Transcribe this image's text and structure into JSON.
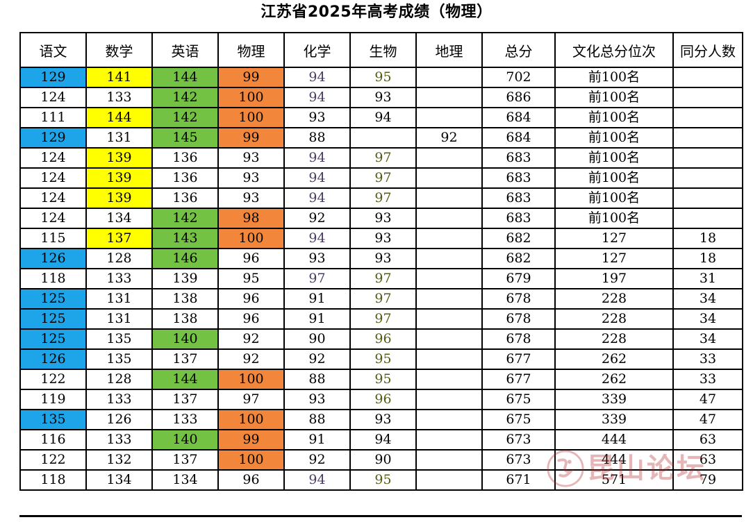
{
  "title": "江苏省2025年高考成绩（物理）",
  "headers": [
    "语文",
    "数学",
    "英语",
    "物理",
    "化学",
    "生物",
    "地理",
    "总分",
    "文化总分位次",
    "同分人数"
  ],
  "rows": [
    {
      "cells": [
        "129",
        "141",
        "144",
        "99",
        "94",
        "95",
        "",
        "702",
        "前100名",
        ""
      ],
      "hl": [
        "blue",
        "yellow",
        "green",
        "orange",
        "",
        "",
        "",
        "",
        "",
        ""
      ],
      "tc": [
        "",
        "",
        "",
        "",
        "purp",
        "olive",
        "",
        "",
        "",
        ""
      ]
    },
    {
      "cells": [
        "124",
        "133",
        "142",
        "100",
        "94",
        "93",
        "",
        "686",
        "前100名",
        ""
      ],
      "hl": [
        "",
        "",
        "green",
        "orange",
        "",
        "",
        "",
        "",
        "",
        ""
      ],
      "tc": [
        "",
        "",
        "",
        "",
        "purp",
        "",
        "",
        "",
        "",
        ""
      ]
    },
    {
      "cells": [
        "111",
        "144",
        "142",
        "100",
        "93",
        "94",
        "",
        "684",
        "前100名",
        ""
      ],
      "hl": [
        "",
        "yellow",
        "green",
        "orange",
        "",
        "",
        "",
        "",
        "",
        ""
      ],
      "tc": [
        "",
        "",
        "",
        "",
        "",
        "",
        "",
        "",
        "",
        ""
      ]
    },
    {
      "cells": [
        "129",
        "131",
        "145",
        "99",
        "88",
        "",
        "92",
        "684",
        "前100名",
        ""
      ],
      "hl": [
        "blue",
        "",
        "green",
        "orange",
        "",
        "",
        "",
        "",
        "",
        ""
      ],
      "tc": [
        "",
        "",
        "",
        "",
        "",
        "",
        "",
        "",
        "",
        ""
      ]
    },
    {
      "cells": [
        "124",
        "139",
        "136",
        "93",
        "94",
        "97",
        "",
        "683",
        "前100名",
        ""
      ],
      "hl": [
        "",
        "yellow",
        "",
        "",
        "",
        "",
        "",
        "",
        "",
        ""
      ],
      "tc": [
        "",
        "",
        "",
        "",
        "purp",
        "olive",
        "",
        "",
        "",
        ""
      ]
    },
    {
      "cells": [
        "124",
        "139",
        "136",
        "93",
        "94",
        "97",
        "",
        "683",
        "前100名",
        ""
      ],
      "hl": [
        "",
        "yellow",
        "",
        "",
        "",
        "",
        "",
        "",
        "",
        ""
      ],
      "tc": [
        "",
        "",
        "",
        "",
        "purp",
        "olive",
        "",
        "",
        "",
        ""
      ]
    },
    {
      "cells": [
        "124",
        "139",
        "136",
        "93",
        "94",
        "97",
        "",
        "683",
        "前100名",
        ""
      ],
      "hl": [
        "",
        "yellow",
        "",
        "",
        "",
        "",
        "",
        "",
        "",
        ""
      ],
      "tc": [
        "",
        "",
        "",
        "",
        "purp",
        "olive",
        "",
        "",
        "",
        ""
      ]
    },
    {
      "cells": [
        "124",
        "134",
        "142",
        "98",
        "92",
        "93",
        "",
        "683",
        "前100名",
        ""
      ],
      "hl": [
        "",
        "",
        "green",
        "orange",
        "",
        "",
        "",
        "",
        "",
        ""
      ],
      "tc": [
        "",
        "",
        "",
        "",
        "",
        "",
        "",
        "",
        "",
        ""
      ]
    },
    {
      "cells": [
        "115",
        "137",
        "143",
        "100",
        "94",
        "93",
        "",
        "682",
        "127",
        "18"
      ],
      "hl": [
        "",
        "yellow",
        "green",
        "orange",
        "",
        "",
        "",
        "",
        "",
        ""
      ],
      "tc": [
        "",
        "",
        "",
        "",
        "purp",
        "",
        "",
        "",
        "",
        ""
      ]
    },
    {
      "cells": [
        "126",
        "128",
        "146",
        "96",
        "93",
        "93",
        "",
        "682",
        "127",
        "18"
      ],
      "hl": [
        "blue",
        "",
        "green",
        "",
        "",
        "",
        "",
        "",
        "",
        ""
      ],
      "tc": [
        "",
        "",
        "",
        "",
        "",
        "",
        "",
        "",
        "",
        ""
      ]
    },
    {
      "cells": [
        "118",
        "133",
        "139",
        "95",
        "97",
        "97",
        "",
        "679",
        "197",
        "31"
      ],
      "hl": [
        "",
        "",
        "",
        "",
        "",
        "",
        "",
        "",
        "",
        ""
      ],
      "tc": [
        "",
        "",
        "",
        "",
        "purp",
        "olive",
        "",
        "",
        "",
        ""
      ]
    },
    {
      "cells": [
        "125",
        "131",
        "138",
        "96",
        "91",
        "97",
        "",
        "678",
        "228",
        "34"
      ],
      "hl": [
        "blue",
        "",
        "",
        "",
        "",
        "",
        "",
        "",
        "",
        ""
      ],
      "tc": [
        "",
        "",
        "",
        "",
        "",
        "olive",
        "",
        "",
        "",
        ""
      ]
    },
    {
      "cells": [
        "125",
        "131",
        "138",
        "96",
        "91",
        "97",
        "",
        "678",
        "228",
        "34"
      ],
      "hl": [
        "blue",
        "",
        "",
        "",
        "",
        "",
        "",
        "",
        "",
        ""
      ],
      "tc": [
        "",
        "",
        "",
        "",
        "",
        "olive",
        "",
        "",
        "",
        ""
      ]
    },
    {
      "cells": [
        "125",
        "135",
        "140",
        "92",
        "90",
        "96",
        "",
        "678",
        "228",
        "34"
      ],
      "hl": [
        "blue",
        "",
        "green",
        "",
        "",
        "",
        "",
        "",
        "",
        ""
      ],
      "tc": [
        "",
        "",
        "",
        "",
        "",
        "olive",
        "",
        "",
        "",
        ""
      ]
    },
    {
      "cells": [
        "126",
        "135",
        "137",
        "92",
        "92",
        "95",
        "",
        "677",
        "262",
        "33"
      ],
      "hl": [
        "blue",
        "",
        "",
        "",
        "",
        "",
        "",
        "",
        "",
        ""
      ],
      "tc": [
        "",
        "",
        "",
        "",
        "",
        "olive",
        "",
        "",
        "",
        ""
      ]
    },
    {
      "cells": [
        "122",
        "128",
        "144",
        "100",
        "88",
        "95",
        "",
        "677",
        "262",
        "33"
      ],
      "hl": [
        "",
        "",
        "green",
        "orange",
        "",
        "",
        "",
        "",
        "",
        ""
      ],
      "tc": [
        "",
        "",
        "",
        "",
        "",
        "olive",
        "",
        "",
        "",
        ""
      ]
    },
    {
      "cells": [
        "119",
        "133",
        "137",
        "97",
        "93",
        "96",
        "",
        "675",
        "339",
        "47"
      ],
      "hl": [
        "",
        "",
        "",
        "",
        "",
        "",
        "",
        "",
        "",
        ""
      ],
      "tc": [
        "",
        "",
        "",
        "",
        "",
        "olive",
        "",
        "",
        "",
        ""
      ]
    },
    {
      "cells": [
        "135",
        "126",
        "133",
        "100",
        "88",
        "93",
        "",
        "675",
        "339",
        "47"
      ],
      "hl": [
        "blue",
        "",
        "",
        "orange",
        "",
        "",
        "",
        "",
        "",
        ""
      ],
      "tc": [
        "",
        "",
        "",
        "",
        "",
        "",
        "",
        "",
        "",
        ""
      ]
    },
    {
      "cells": [
        "116",
        "133",
        "140",
        "99",
        "91",
        "94",
        "",
        "673",
        "444",
        "63"
      ],
      "hl": [
        "",
        "",
        "green",
        "orange",
        "",
        "",
        "",
        "",
        "",
        ""
      ],
      "tc": [
        "",
        "",
        "",
        "",
        "",
        "",
        "",
        "",
        "",
        ""
      ]
    },
    {
      "cells": [
        "122",
        "132",
        "137",
        "100",
        "92",
        "90",
        "",
        "673",
        "444",
        "63"
      ],
      "hl": [
        "",
        "",
        "",
        "orange",
        "",
        "",
        "",
        "",
        "",
        ""
      ],
      "tc": [
        "",
        "",
        "",
        "",
        "",
        "",
        "",
        "",
        "",
        ""
      ]
    },
    {
      "cells": [
        "118",
        "134",
        "134",
        "96",
        "94",
        "95",
        "",
        "671",
        "571",
        "79"
      ],
      "hl": [
        "",
        "",
        "",
        "",
        "",
        "",
        "",
        "",
        "",
        ""
      ],
      "tc": [
        "",
        "",
        "",
        "",
        "purp",
        "olive",
        "",
        "",
        "",
        ""
      ]
    }
  ],
  "highlight_colors": {
    "blue": "#1ea4e9",
    "yellow": "#ffff00",
    "green": "#73c243",
    "orange": "#f2873c"
  },
  "watermark": {
    "text": "昆山论坛",
    "logo_icon": "kunshan-forum-logo-icon",
    "color": "#b3262b"
  }
}
